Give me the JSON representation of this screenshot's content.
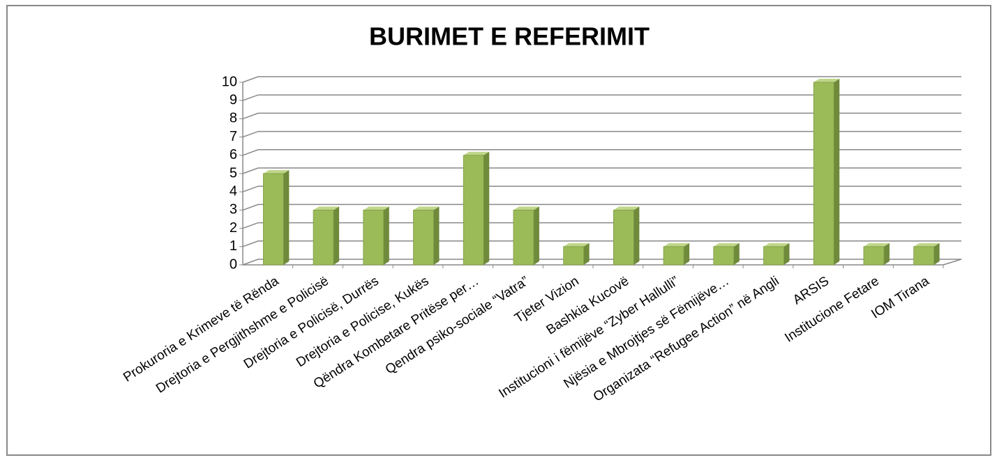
{
  "chart_data": {
    "type": "bar3d",
    "title": "BURIMET E REFERIMIT",
    "categories": [
      "Prokuroria e Krimeve të Rënda",
      "Drejtoria e Pergjithshme e Policisë",
      "Drejtoria e Policisë, Durrës",
      "Drejtoria e Policise, Kukës",
      "Qëndra Kombetare Pritëse per…",
      "Qendra psiko-sociale “Vatra”",
      "Tjeter Vizion",
      "Bashkia Kucovë",
      "Institucioni i fëmijëve “Zyber Hallulli”",
      "Njësia e Mbrojtjes së Fëmijëve…",
      "Organizata “Refugee Action”  në Angli",
      "ARSIS",
      "Institucione Fetare",
      "IOM Tirana"
    ],
    "values": [
      5,
      3,
      3,
      3,
      6,
      3,
      1,
      3,
      1,
      1,
      1,
      10,
      1,
      1
    ],
    "color": "#9bbb59",
    "ylim": [
      0,
      10
    ],
    "yticks": [
      0,
      1,
      2,
      3,
      4,
      5,
      6,
      7,
      8,
      9,
      10
    ],
    "grid": true
  }
}
